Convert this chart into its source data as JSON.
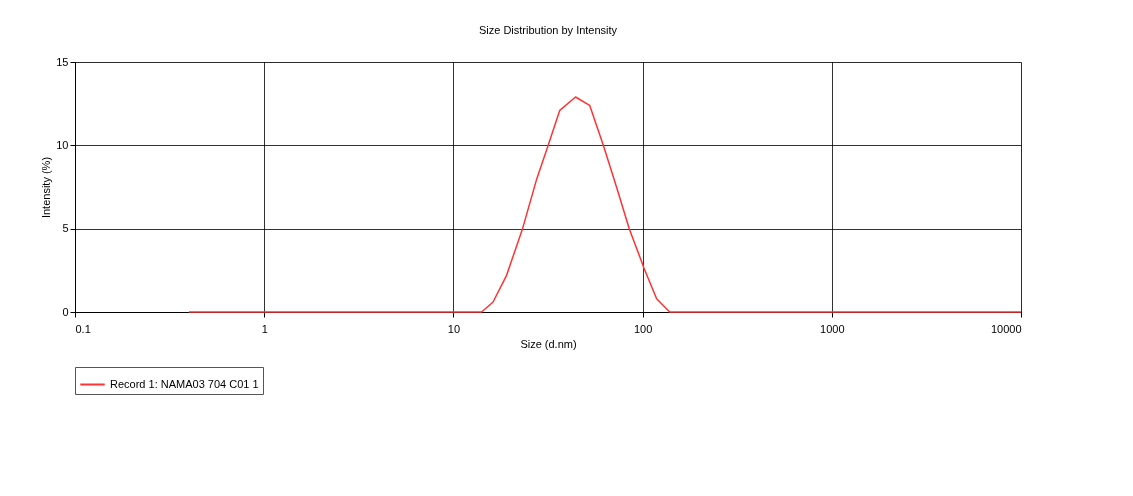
{
  "chart_data": {
    "type": "line",
    "title": "Size Distribution by Intensity",
    "xlabel": "Size (d.nm)",
    "ylabel": "Intensity (%)",
    "log": "x",
    "xlim": [
      0.1,
      10000
    ],
    "xticks": [
      0.1,
      1,
      10,
      100,
      1000,
      10000
    ],
    "ylim": [
      0,
      15
    ],
    "yticks": [
      0,
      5,
      10,
      15
    ],
    "grid": true,
    "legend": "bottom",
    "series": [
      {
        "name": "Record 1: NAMA03 704 C01 1",
        "color": "#ff3333",
        "x": [
          0.4,
          14.1,
          16.2,
          19.1,
          23.2,
          27.6,
          31.7,
          36.5,
          44.2,
          52.5,
          62,
          72.8,
          85,
          102,
          118.6,
          139,
          10000
        ],
        "values": [
          0,
          0,
          0.6,
          2.2,
          5.0,
          8.0,
          10.0,
          12.1,
          12.9,
          12.4,
          10.0,
          7.5,
          5.0,
          2.6,
          0.8,
          0,
          0
        ]
      }
    ]
  }
}
